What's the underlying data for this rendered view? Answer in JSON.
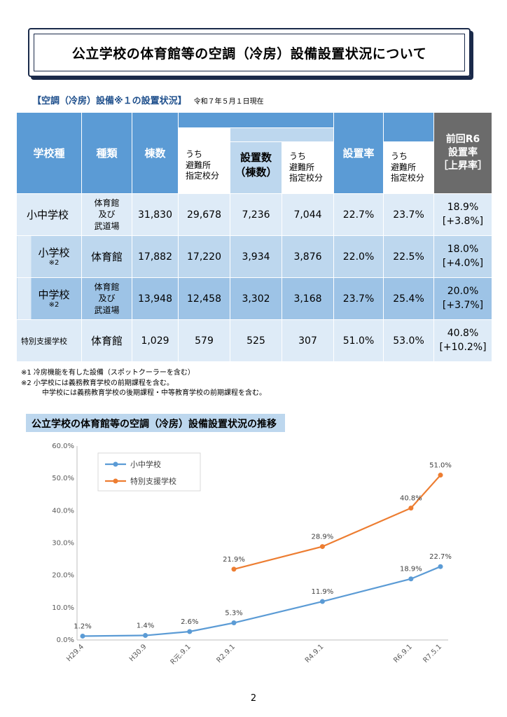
{
  "title": "公立学校の体育館等の空調（冷房）設備設置状況について",
  "section1": {
    "heading": "【空調（冷房）設備※１の設置状況】",
    "as_of": "令和７年５月１日現在"
  },
  "table": {
    "headers": {
      "school_type": "学校種",
      "kind": "種類",
      "buildings": "棟数",
      "shelter_sub": "うち\n避難所\n指定校分",
      "installed": "設置数\n（棟数）",
      "installed_sub": "うち\n避難所\n指定校分",
      "rate": "設置率",
      "rate_sub": "うち\n避難所\n指定校分",
      "prev": "前回R6\n設置率\n［上昇率］"
    },
    "rows": [
      {
        "type": "小中学校",
        "note": "",
        "kind": "体育館\n及び\n武道場",
        "buildings": "31,830",
        "shelter": "29,678",
        "installed": "7,236",
        "installed_shelter": "7,044",
        "rate": "22.7%",
        "rate_shelter": "23.7%",
        "prev": "18.9%",
        "prev_rise": "[+3.8%]"
      },
      {
        "type": "小学校",
        "note": "※2",
        "kind": "体育館",
        "buildings": "17,882",
        "shelter": "17,220",
        "installed": "3,934",
        "installed_shelter": "3,876",
        "rate": "22.0%",
        "rate_shelter": "22.5%",
        "prev": "18.0%",
        "prev_rise": "[+4.0%]"
      },
      {
        "type": "中学校",
        "note": "※2",
        "kind": "体育館\n及び\n武道場",
        "buildings": "13,948",
        "shelter": "12,458",
        "installed": "3,302",
        "installed_shelter": "3,168",
        "rate": "23.7%",
        "rate_shelter": "25.4%",
        "prev": "20.0%",
        "prev_rise": "[+3.7%]"
      },
      {
        "type": "特別支援学校",
        "note": "",
        "kind": "体育館",
        "buildings": "1,029",
        "shelter": "579",
        "installed": "525",
        "installed_shelter": "307",
        "rate": "51.0%",
        "rate_shelter": "53.0%",
        "prev": "40.8%",
        "prev_rise": "[+10.2%]"
      }
    ]
  },
  "notes": [
    "※1  冷房機能を有した設備（スポットクーラーを含む）",
    "※2  小学校には義務教育学校の前期課程を含む。",
    "中学校には義務教育学校の後期課程・中等教育学校の前期課程を含む。"
  ],
  "section2": {
    "heading": "公立学校の体育館等の空調（冷房）設備設置状況の推移"
  },
  "chart_data": {
    "type": "line",
    "title": "",
    "xlabel": "",
    "ylabel": "",
    "ylim": [
      0,
      60
    ],
    "yticks": [
      "0.0%",
      "10.0%",
      "20.0%",
      "30.0%",
      "40.0%",
      "50.0%",
      "60.0%"
    ],
    "x": [
      "H29.4",
      "H30.9",
      "R元.9.1",
      "R2.9.1",
      "R4.9.1",
      "R6.9.1",
      "R7.5.1"
    ],
    "x_time_months": [
      "2017-04",
      "2018-09",
      "2019-09",
      "2020-09",
      "2022-09",
      "2024-09",
      "2025-05"
    ],
    "grid": false,
    "legend_position": "top-left",
    "series": [
      {
        "name": "小中学校",
        "color": "#5b9bd5",
        "values": [
          1.2,
          1.4,
          2.6,
          5.3,
          11.9,
          18.9,
          22.7
        ],
        "labels": [
          "1.2%",
          "1.4%",
          "2.6%",
          "5.3%",
          "11.9%",
          "18.9%",
          "22.7%"
        ]
      },
      {
        "name": "特別支援学校",
        "color": "#ed7d31",
        "values": [
          null,
          null,
          null,
          21.9,
          28.9,
          40.8,
          51.0
        ],
        "labels": [
          null,
          null,
          null,
          "21.9%",
          "28.9%",
          "40.8%",
          "51.0%"
        ]
      }
    ]
  },
  "page_number": "2"
}
